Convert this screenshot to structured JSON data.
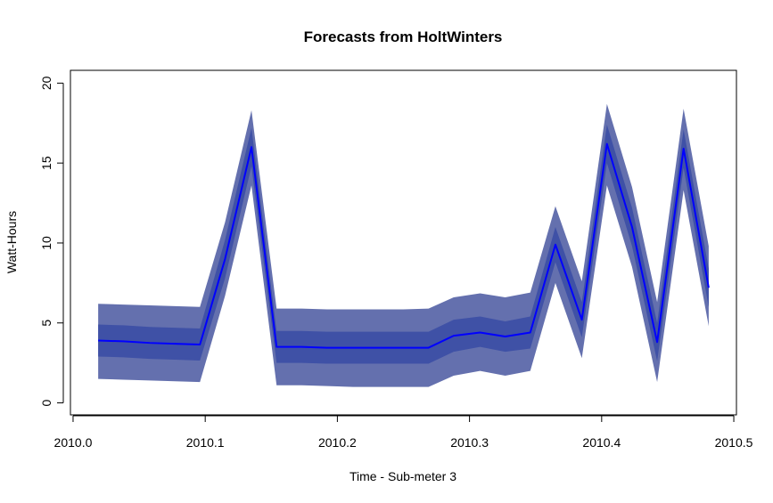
{
  "chart_data": {
    "type": "line",
    "title": "Forecasts from HoltWinters",
    "xlabel": "Time - Sub-meter 3",
    "ylabel": "Watt-Hours",
    "xlim": [
      2009.998,
      2010.502
    ],
    "ylim": [
      -0.75,
      20.8
    ],
    "x_ticks": [
      2010.0,
      2010.1,
      2010.2,
      2010.3,
      2010.4,
      2010.5
    ],
    "x_tick_labels": [
      "2010.0",
      "2010.1",
      "2010.2",
      "2010.3",
      "2010.4",
      "2010.5"
    ],
    "y_ticks": [
      0,
      5,
      10,
      15,
      20
    ],
    "y_tick_labels": [
      "0",
      "5",
      "10",
      "15",
      "20"
    ],
    "grid": false,
    "colors": {
      "forecast_line": "#0000ff",
      "interval_80": "#3f51a6",
      "interval_95": "#6470ae"
    },
    "x": [
      2010.019,
      2010.038,
      2010.058,
      2010.077,
      2010.096,
      2010.115,
      2010.135,
      2010.154,
      2010.173,
      2010.192,
      2010.212,
      2010.231,
      2010.25,
      2010.269,
      2010.288,
      2010.308,
      2010.327,
      2010.346,
      2010.365,
      2010.385,
      2010.404,
      2010.423,
      2010.442,
      2010.462,
      2010.481
    ],
    "series": [
      {
        "values": [
          3.9,
          3.85,
          3.75,
          3.7,
          3.65,
          9.0,
          16.0,
          3.5,
          3.5,
          3.45,
          3.45,
          3.45,
          3.45,
          3.45,
          4.2,
          4.4,
          4.15,
          4.4,
          9.9,
          5.2,
          16.2,
          11.0,
          3.8,
          15.9,
          7.2
        ]
      }
    ],
    "interval_80": {
      "lower": [
        2.9,
        2.85,
        2.75,
        2.7,
        2.65,
        7.8,
        14.8,
        2.5,
        2.5,
        2.45,
        2.45,
        2.45,
        2.45,
        2.45,
        3.2,
        3.5,
        3.2,
        3.4,
        8.8,
        4.1,
        15.0,
        9.8,
        2.6,
        14.7,
        6.0
      ],
      "upper": [
        4.9,
        4.85,
        4.75,
        4.7,
        4.65,
        10.2,
        17.2,
        4.5,
        4.5,
        4.45,
        4.45,
        4.45,
        4.45,
        4.45,
        5.2,
        5.4,
        5.1,
        5.4,
        11.0,
        6.3,
        17.4,
        12.2,
        5.0,
        17.1,
        8.4
      ]
    },
    "interval_95": {
      "lower": [
        1.5,
        1.45,
        1.4,
        1.35,
        1.3,
        6.7,
        13.6,
        1.1,
        1.1,
        1.05,
        1.0,
        1.0,
        1.0,
        1.0,
        1.7,
        2.0,
        1.7,
        2.0,
        7.5,
        2.8,
        13.6,
        8.5,
        1.3,
        13.3,
        4.8
      ],
      "upper": [
        6.2,
        6.15,
        6.1,
        6.05,
        6.0,
        11.3,
        18.3,
        5.9,
        5.9,
        5.85,
        5.85,
        5.85,
        5.85,
        5.9,
        6.6,
        6.85,
        6.6,
        6.9,
        12.3,
        7.6,
        18.7,
        13.5,
        6.3,
        18.4,
        9.8
      ]
    }
  }
}
